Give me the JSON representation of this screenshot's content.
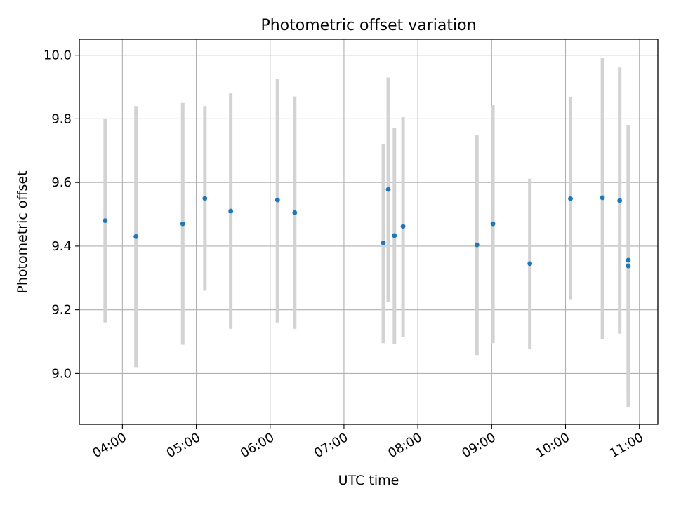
{
  "chart_data": {
    "type": "scatter",
    "title": "Photometric offset variation",
    "xlabel": "UTC time",
    "ylabel": "Photometric offset",
    "x_tick_labels": [
      "04:00",
      "05:00",
      "06:00",
      "07:00",
      "08:00",
      "09:00",
      "10:00",
      "11:00"
    ],
    "y_tick_labels": [
      "9.0",
      "9.2",
      "9.4",
      "9.6",
      "9.8",
      "10.0"
    ],
    "xlim": [
      "03:25",
      "11:15"
    ],
    "ylim": [
      8.84,
      10.05
    ],
    "grid": true,
    "colors": {
      "point": "#1f77b4",
      "errorbar": "#d3d3d3",
      "grid": "#b0b0b0"
    },
    "points": [
      {
        "x": "03:46",
        "y": 9.48,
        "ylow": 9.16,
        "yhigh": 9.8
      },
      {
        "x": "04:11",
        "y": 9.43,
        "ylow": 9.02,
        "yhigh": 9.84
      },
      {
        "x": "04:49",
        "y": 9.47,
        "ylow": 9.09,
        "yhigh": 9.85
      },
      {
        "x": "05:07",
        "y": 9.55,
        "ylow": 9.26,
        "yhigh": 9.84
      },
      {
        "x": "05:28",
        "y": 9.51,
        "ylow": 9.14,
        "yhigh": 9.88
      },
      {
        "x": "06:06",
        "y": 9.545,
        "ylow": 9.16,
        "yhigh": 9.925
      },
      {
        "x": "06:20",
        "y": 9.505,
        "ylow": 9.14,
        "yhigh": 9.87
      },
      {
        "x": "07:32",
        "y": 9.41,
        "ylow": 9.095,
        "yhigh": 9.72
      },
      {
        "x": "07:36",
        "y": 9.578,
        "ylow": 9.225,
        "yhigh": 9.93
      },
      {
        "x": "07:41",
        "y": 9.433,
        "ylow": 9.093,
        "yhigh": 9.77
      },
      {
        "x": "07:48",
        "y": 9.462,
        "ylow": 9.115,
        "yhigh": 9.805
      },
      {
        "x": "08:48",
        "y": 9.404,
        "ylow": 9.058,
        "yhigh": 9.75
      },
      {
        "x": "09:01",
        "y": 9.47,
        "ylow": 9.095,
        "yhigh": 9.845
      },
      {
        "x": "09:31",
        "y": 9.345,
        "ylow": 9.078,
        "yhigh": 9.612
      },
      {
        "x": "10:04",
        "y": 9.549,
        "ylow": 9.231,
        "yhigh": 9.867
      },
      {
        "x": "10:30",
        "y": 9.552,
        "ylow": 9.108,
        "yhigh": 9.992
      },
      {
        "x": "10:44",
        "y": 9.543,
        "ylow": 9.125,
        "yhigh": 9.961
      },
      {
        "x": "10:51",
        "y": 9.356,
        "ylow": 8.948,
        "yhigh": 9.764
      },
      {
        "x": "10:51",
        "y": 9.338,
        "ylow": 8.895,
        "yhigh": 9.781
      }
    ]
  }
}
